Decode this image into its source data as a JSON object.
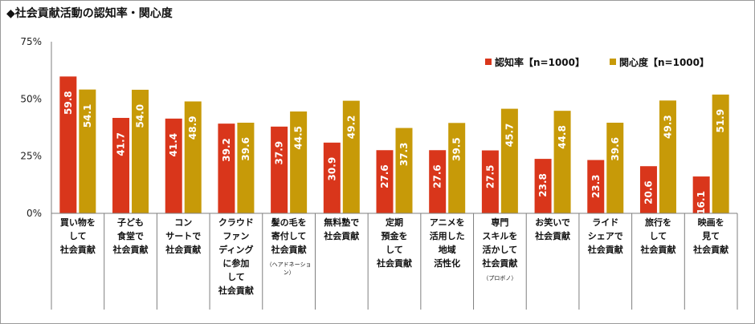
{
  "title": "◆社会貢献活動の認知率・関心度",
  "chart_data": {
    "type": "bar",
    "categories": [
      [
        "買い物を",
        "して",
        "社会貢献"
      ],
      [
        "子ども",
        "食堂で",
        "社会貢献"
      ],
      [
        "コン",
        "サートで",
        "社会貢献"
      ],
      [
        "クラウド",
        "ファン",
        "ディング",
        "に参加",
        "して",
        "社会貢献"
      ],
      [
        "髪の毛を",
        "寄付して",
        "社会貢献",
        "（ヘアドネーショ",
        "ン）"
      ],
      [
        "無料塾で",
        "社会貢献"
      ],
      [
        "定期",
        "預金を",
        "して",
        "社会貢献"
      ],
      [
        "アニメを",
        "活用した",
        "地域",
        "活性化"
      ],
      [
        "専門",
        "スキルを",
        "活かして",
        "社会貢献",
        "（プロボノ）"
      ],
      [
        "お笑いで",
        "社会貢献"
      ],
      [
        "ライド",
        "シェアで",
        "社会貢献"
      ],
      [
        "旅行を",
        "して",
        "社会貢献"
      ],
      [
        "映画を",
        "見て",
        "社会貢献"
      ]
    ],
    "series": [
      {
        "name": "認知率【n=1000】",
        "color": "#d9361b",
        "values": [
          59.8,
          41.7,
          41.4,
          39.2,
          37.9,
          30.9,
          27.6,
          27.6,
          27.5,
          23.8,
          23.3,
          20.6,
          16.1
        ]
      },
      {
        "name": "関心度【n=1000】",
        "color": "#c79a08",
        "values": [
          54.1,
          54.0,
          48.9,
          39.6,
          44.5,
          49.2,
          37.3,
          39.5,
          45.7,
          44.8,
          39.6,
          49.3,
          51.9
        ]
      }
    ],
    "yticks": [
      "0%",
      "25%",
      "50%",
      "75%"
    ],
    "ylim": [
      0,
      75
    ],
    "legend_position": "top-right",
    "grid": false
  }
}
